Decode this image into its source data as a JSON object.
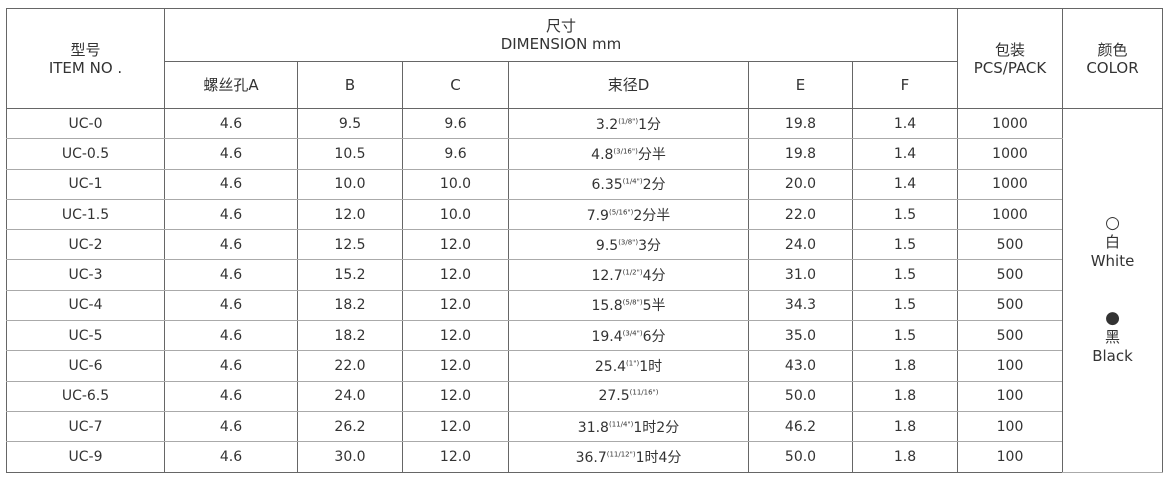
{
  "header": {
    "item": {
      "zh": "型号",
      "en": "ITEM NO ."
    },
    "dimension": {
      "zh": "尺寸",
      "en": "DIMENSION mm"
    },
    "pack": {
      "zh": "包装",
      "en": "PCS/PACK"
    },
    "color": {
      "zh": "颜色",
      "en": "COLOR"
    },
    "sub": [
      "螺丝孔A",
      "B",
      "C",
      "束径D",
      "E",
      "F"
    ]
  },
  "rows": [
    {
      "item": "UC-0",
      "a": "4.6",
      "b": "9.5",
      "c": "9.6",
      "d": {
        "main": "3.2",
        "sup": "(1/8\")",
        "suffix": "1分"
      },
      "e": "19.8",
      "f": "1.4",
      "pack": "1000"
    },
    {
      "item": "UC-0.5",
      "a": "4.6",
      "b": "10.5",
      "c": "9.6",
      "d": {
        "main": "4.8",
        "sup": "(3/16\")",
        "suffix": "分半"
      },
      "e": "19.8",
      "f": "1.4",
      "pack": "1000"
    },
    {
      "item": "UC-1",
      "a": "4.6",
      "b": "10.0",
      "c": "10.0",
      "d": {
        "main": "6.35",
        "sup": "(1/4\")",
        "suffix": "2分"
      },
      "e": "20.0",
      "f": "1.4",
      "pack": "1000"
    },
    {
      "item": "UC-1.5",
      "a": "4.6",
      "b": "12.0",
      "c": "10.0",
      "d": {
        "main": "7.9",
        "sup": "(5/16\")",
        "suffix": "2分半"
      },
      "e": "22.0",
      "f": "1.5",
      "pack": "1000"
    },
    {
      "item": "UC-2",
      "a": "4.6",
      "b": "12.5",
      "c": "12.0",
      "d": {
        "main": "9.5",
        "sup": "(3/8\")",
        "suffix": "3分"
      },
      "e": "24.0",
      "f": "1.5",
      "pack": "500"
    },
    {
      "item": "UC-3",
      "a": "4.6",
      "b": "15.2",
      "c": "12.0",
      "d": {
        "main": "12.7",
        "sup": "(1/2\")",
        "suffix": "4分"
      },
      "e": "31.0",
      "f": "1.5",
      "pack": "500"
    },
    {
      "item": "UC-4",
      "a": "4.6",
      "b": "18.2",
      "c": "12.0",
      "d": {
        "main": "15.8",
        "sup": "(5/8\")",
        "suffix": "5半"
      },
      "e": "34.3",
      "f": "1.5",
      "pack": "500"
    },
    {
      "item": "UC-5",
      "a": "4.6",
      "b": "18.2",
      "c": "12.0",
      "d": {
        "main": "19.4",
        "sup": "(3/4\")",
        "suffix": "6分"
      },
      "e": "35.0",
      "f": "1.5",
      "pack": "500"
    },
    {
      "item": "UC-6",
      "a": "4.6",
      "b": "22.0",
      "c": "12.0",
      "d": {
        "main": "25.4",
        "sup": "(1\")",
        "suffix": "1时"
      },
      "e": "43.0",
      "f": "1.8",
      "pack": "100"
    },
    {
      "item": "UC-6.5",
      "a": "4.6",
      "b": "24.0",
      "c": "12.0",
      "d": {
        "main": "27.5",
        "sup": "(11/16\")"
      },
      "e": "50.0",
      "f": "1.8",
      "pack": "100"
    },
    {
      "item": "UC-7",
      "a": "4.6",
      "b": "26.2",
      "c": "12.0",
      "d": {
        "main": "31.8",
        "sup": "(11/4\")",
        "suffix": "1时2分"
      },
      "e": "46.2",
      "f": "1.8",
      "pack": "100"
    },
    {
      "item": "UC-9",
      "a": "4.6",
      "b": "30.0",
      "c": "12.0",
      "d": {
        "main": "36.7",
        "sup": "(11/12\")",
        "suffix": "1时4分"
      },
      "e": "50.0",
      "f": "1.8",
      "pack": "100"
    }
  ],
  "colors": [
    {
      "symbol": "○",
      "zh": "白",
      "en": "White"
    },
    {
      "symbol": "●",
      "zh": "黑",
      "en": "Black"
    }
  ]
}
